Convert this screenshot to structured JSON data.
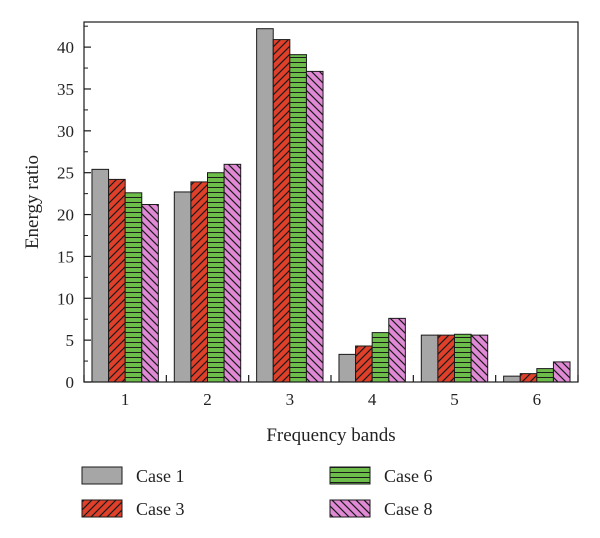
{
  "chart_data": {
    "type": "bar",
    "xlabel": "Frequency bands",
    "ylabel": "Energy ratio",
    "categories": [
      "1",
      "2",
      "3",
      "4",
      "5",
      "6"
    ],
    "ylim": [
      0,
      43
    ],
    "yticks": [
      0,
      5,
      10,
      15,
      20,
      25,
      30,
      35,
      40
    ],
    "grid": false,
    "legend_position": "bottom",
    "series": [
      {
        "name": "Case 1",
        "color": "#a6a6a6",
        "pattern": "solid",
        "values": [
          25.4,
          22.7,
          42.2,
          3.3,
          5.6,
          0.7
        ]
      },
      {
        "name": "Case 3",
        "color": "#e0402a",
        "pattern": "diagonal-right",
        "values": [
          24.2,
          23.9,
          40.9,
          4.3,
          5.6,
          1.0
        ]
      },
      {
        "name": "Case 6",
        "color": "#6cbd4a",
        "pattern": "horizontal",
        "values": [
          22.6,
          25.0,
          39.1,
          5.9,
          5.7,
          1.6
        ]
      },
      {
        "name": "Case 8",
        "color": "#e08ad6",
        "pattern": "diagonal-left",
        "values": [
          21.2,
          26.0,
          37.1,
          7.6,
          5.6,
          2.4
        ]
      }
    ]
  }
}
